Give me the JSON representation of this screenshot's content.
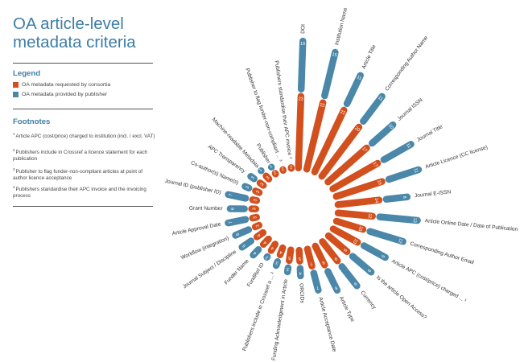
{
  "title": "OA article-level metadata criteria",
  "legend": {
    "heading": "Legend",
    "items": [
      {
        "label": "OA metadata requested by consortia",
        "color": "#d2501e"
      },
      {
        "label": "OA metadata provided by publisher",
        "color": "#4a87a8"
      }
    ]
  },
  "footnotes": {
    "heading": "Footnotes",
    "items": [
      {
        "num": "1",
        "text": "Article APC (cost/price) charged to institution (incl. / excl. VAT)"
      },
      {
        "num": "2",
        "text": "Publishers include in Crossref a licence statement for each publication"
      },
      {
        "num": "3",
        "text": "Publisher to flag funder-non-compliant articles at point of author licence acceptance"
      },
      {
        "num": "4",
        "text": "Publishers standardise their APC invoice and the invoicing process"
      }
    ]
  },
  "chart_data": {
    "type": "bar",
    "layout": "radial",
    "series": [
      {
        "name": "OA metadata requested by consortia",
        "color": "#d2501e"
      },
      {
        "name": "OA metadata provided by publisher",
        "color": "#4a87a8"
      }
    ],
    "categories": [
      {
        "label": "DOI",
        "requested": 23,
        "provided": 16
      },
      {
        "label": "Institution Name",
        "requested": 22,
        "provided": 15
      },
      {
        "label": "Article Title",
        "requested": 22,
        "provided": 11
      },
      {
        "label": "Corresponding Author Name",
        "requested": 20,
        "provided": 11
      },
      {
        "label": "Journal ISSN",
        "requested": 17,
        "provided": 10
      },
      {
        "label": "Journal Title",
        "requested": 17,
        "provided": 11
      },
      {
        "label": "Article Licence (CC license)",
        "requested": 16,
        "provided": 11
      },
      {
        "label": "Journal E-ISSN",
        "requested": 14,
        "provided": 8
      },
      {
        "label": "Article Online Date / Date of Publication",
        "requested": 12,
        "provided": 13
      },
      {
        "label": "Corresponding Author Email",
        "requested": 10,
        "provided": 12
      },
      {
        "label": "Article APC (cost/price) charged ... ¹",
        "requested": 10,
        "provided": 9
      },
      {
        "label": "Is the article Open Access?",
        "requested": 9,
        "provided": 9
      },
      {
        "label": "Currency",
        "requested": 9,
        "provided": 9
      },
      {
        "label": "Article Type",
        "requested": 8,
        "provided": 8
      },
      {
        "label": "Article Acceptance Date",
        "requested": 7,
        "provided": 7
      },
      {
        "label": "ORCIDs",
        "requested": 5,
        "provided": 4
      },
      {
        "label": "Funding Acknowledgment in Article",
        "requested": 5,
        "provided": 3
      },
      {
        "label": "Publishers include in Crossref a ... ²",
        "requested": 4,
        "provided": 3
      },
      {
        "label": "FundRef ID",
        "requested": 4,
        "provided": 2
      },
      {
        "label": "Funder Name",
        "requested": 4,
        "provided": 4
      },
      {
        "label": "Journal Subject / Discipline",
        "requested": 4,
        "provided": 5
      },
      {
        "label": "Workflow (integration)",
        "requested": 3,
        "provided": 6
      },
      {
        "label": "Article Approval Date",
        "requested": 3,
        "provided": 7
      },
      {
        "label": "Grant Number",
        "requested": 3,
        "provided": 6
      },
      {
        "label": "Journal ID (publisher ID)",
        "requested": 3,
        "provided": 7
      },
      {
        "label": "Co-author(s) Name(s)",
        "requested": 3,
        "provided": 3
      },
      {
        "label": "APC Transparency",
        "requested": 3,
        "provided": 3
      },
      {
        "label": "Machine-readable Metadata",
        "requested": 3,
        "provided": 1
      },
      {
        "label": "Publisher",
        "requested": 2,
        "provided": 1
      },
      {
        "label": "Publisher to flag funder-non-compliant ... ³",
        "requested": 2,
        "provided": 0
      },
      {
        "label": "Publishers standardise their APC invoice ⁴",
        "requested": 2,
        "provided": 0
      }
    ]
  }
}
